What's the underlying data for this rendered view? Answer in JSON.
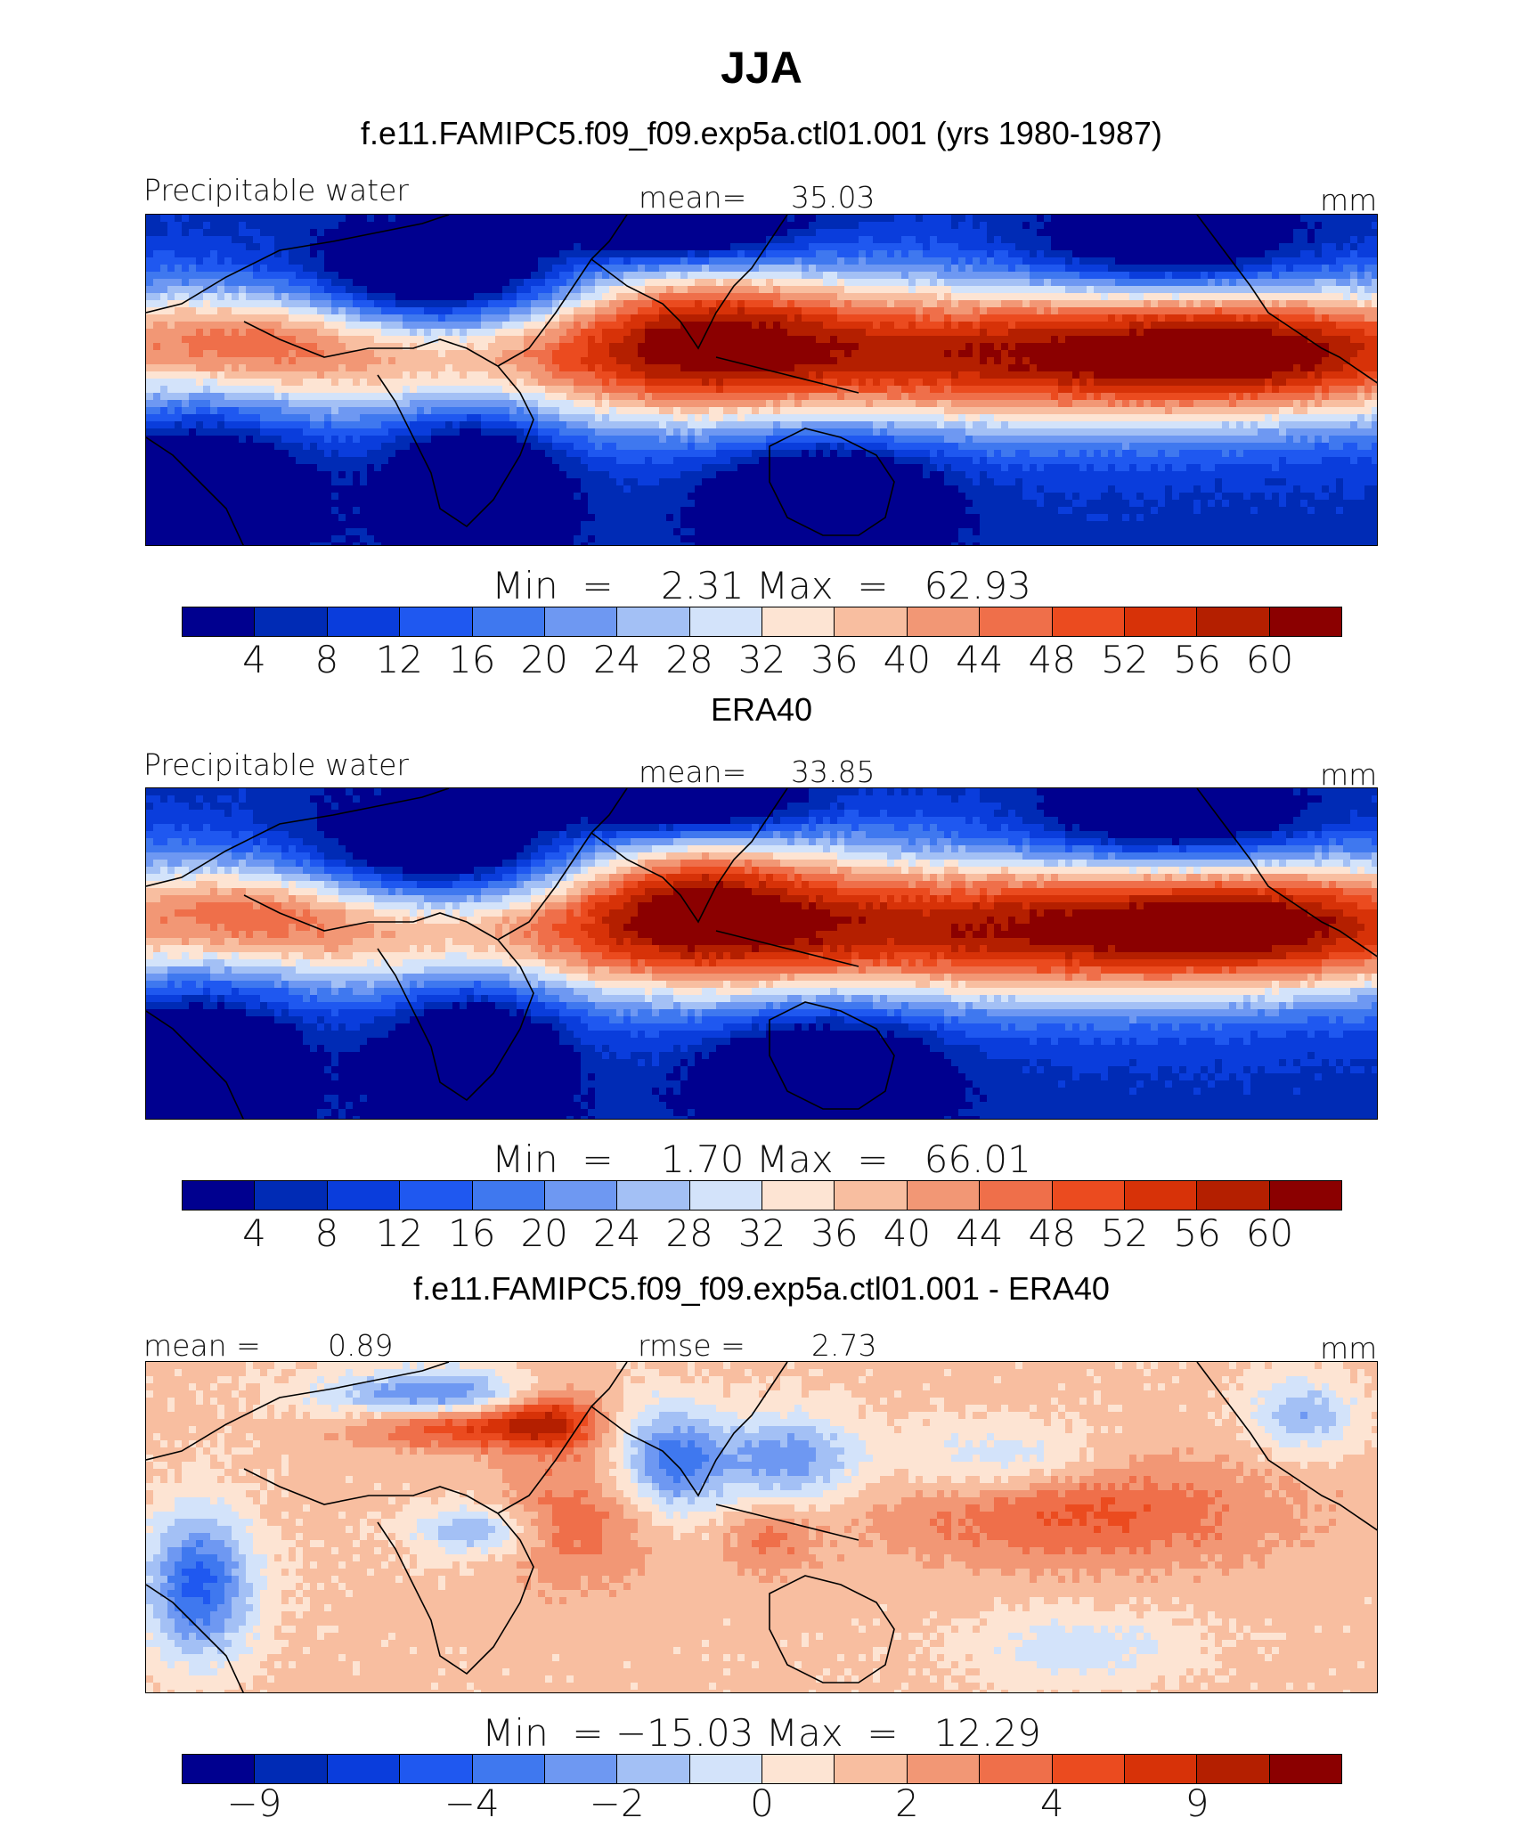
{
  "title": "JJA",
  "colors": {
    "abs_palette": [
      "#00008f",
      "#002bb5",
      "#0a3ddc",
      "#1f58f0",
      "#3f78ef",
      "#6e98f2",
      "#a3c0f5",
      "#d3e3fa",
      "#fde4d3",
      "#f8bea0",
      "#f29775",
      "#ef6f4a",
      "#eb4b1f",
      "#d73208",
      "#b41f00",
      "#8b0000"
    ],
    "diff_palette": [
      "#00008f",
      "#002bb5",
      "#0a3ddc",
      "#1f58f0",
      "#3f78ef",
      "#6e98f2",
      "#a3c0f5",
      "#d3e3fa",
      "#fde4d3",
      "#f8bea0",
      "#f29775",
      "#ef6f4a",
      "#eb4b1f",
      "#d73208",
      "#b41f00",
      "#8b0000"
    ]
  },
  "panels": [
    {
      "title": "f.e11.FAMIPC5.f09_f09.exp5a.ctl01.001 (yrs 1980-1987)",
      "left_label": "Precipitable water",
      "center_label": "mean=",
      "center_value": "35.03",
      "units": "mm",
      "min_label": "Min",
      "eq": "=",
      "min_value": "2.31",
      "max_label": "Max",
      "max_value": "62.93",
      "ticks": [
        "4",
        "8",
        "12",
        "16",
        "20",
        "24",
        "28",
        "32",
        "36",
        "40",
        "44",
        "48",
        "52",
        "56",
        "60"
      ]
    },
    {
      "title": "ERA40",
      "left_label": "Precipitable water",
      "center_label": "mean=",
      "center_value": "33.85",
      "units": "mm",
      "min_label": "Min",
      "eq": "=",
      "min_value": "1.70",
      "max_label": "Max",
      "max_value": "66.01",
      "ticks": [
        "4",
        "8",
        "12",
        "16",
        "20",
        "24",
        "28",
        "32",
        "36",
        "40",
        "44",
        "48",
        "52",
        "56",
        "60"
      ]
    },
    {
      "title": "f.e11.FAMIPC5.f09_f09.exp5a.ctl01.001 - ERA40",
      "left_label": "mean =",
      "left_value": "0.89",
      "center_label": "rmse =",
      "center_value": "2.73",
      "units": "mm",
      "min_label": "Min",
      "eq": "=",
      "min_value": "−15.03",
      "max_label": "Max",
      "max_value": "12.29",
      "ticks": [
        "−9",
        "−4",
        "−2",
        "0",
        "2",
        "4",
        "9"
      ]
    }
  ]
}
